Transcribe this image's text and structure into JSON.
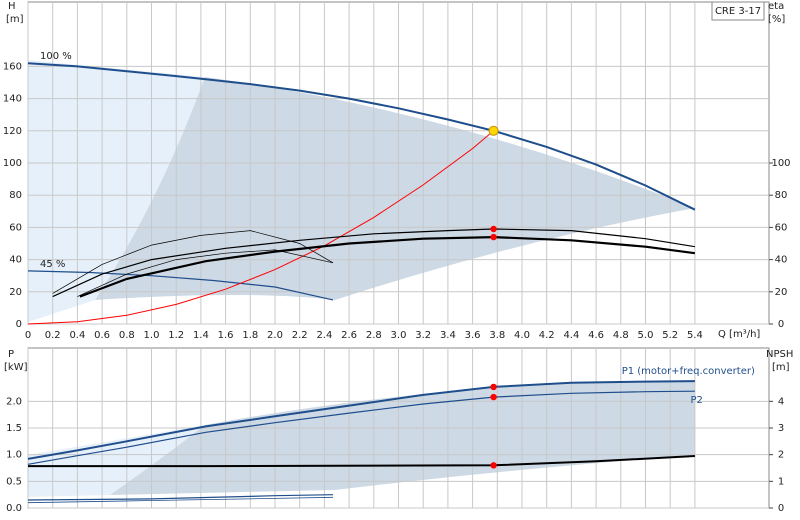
{
  "chart_data": [
    {
      "type": "line",
      "badge": "CRE 3-17",
      "y_label": "H",
      "y_unit": "[m]",
      "y2_label": "eta",
      "y2_unit": "[%]",
      "x_label": "Q [m³/h]",
      "xlim": [
        0,
        6.0
      ],
      "xticks": [
        0,
        0.2,
        0.4,
        0.6,
        0.8,
        {
          "value": 1,
          "label": "1.0"
        },
        1.2,
        1.4,
        1.6,
        1.8,
        {
          "value": 2,
          "label": "2.0"
        },
        2.2,
        2.4,
        2.6,
        2.8,
        {
          "value": 3,
          "label": "3.0"
        },
        3.2,
        3.4,
        3.6,
        3.8,
        {
          "value": 4,
          "label": "4.0"
        },
        4.2,
        4.4,
        4.6,
        4.8,
        {
          "value": 5,
          "label": "5.0"
        },
        5.2,
        5.4
      ],
      "ylim": [
        0,
        200
      ],
      "yticks": [
        0,
        20,
        40,
        60,
        80,
        100,
        120,
        140,
        160
      ],
      "y2lim": [
        0,
        200
      ],
      "y2ticks": [
        0,
        20,
        40,
        60,
        80,
        100
      ],
      "series": [
        {
          "name": "100 %",
          "color": "#1f4e8c",
          "width": 2,
          "x": [
            0,
            0.4,
            0.8,
            1.2,
            1.44,
            1.8,
            2.2,
            2.6,
            3.0,
            3.4,
            3.77,
            4.2,
            4.6,
            5.0,
            5.4
          ],
          "values": [
            162,
            160,
            157,
            154,
            152,
            149,
            145,
            140,
            134,
            127,
            120,
            110,
            99,
            86,
            71
          ]
        },
        {
          "name": "45 %",
          "color": "#1f4e8c",
          "width": 1.2,
          "x": [
            0,
            0.5,
            1.0,
            1.5,
            2.0,
            2.47
          ],
          "values": [
            33,
            32,
            30,
            27,
            23,
            15
          ]
        },
        {
          "color": "#ff0000",
          "width": 1,
          "x": [
            0,
            0.4,
            0.8,
            1.2,
            1.6,
            2.0,
            2.4,
            2.8,
            3.2,
            3.6,
            3.77
          ],
          "values": [
            0,
            1.4,
            5.4,
            12.2,
            21.6,
            33.8,
            48.6,
            66.2,
            86.4,
            109,
            120
          ]
        },
        {
          "color": "#000000",
          "width": 2.2,
          "axis": "y2",
          "x": [
            0.42,
            0.8,
            1.44,
            2.0,
            2.6,
            3.2,
            3.77,
            4.4,
            5.0,
            5.4
          ],
          "values": [
            17,
            28,
            39,
            45,
            50,
            53,
            54,
            52,
            48,
            44
          ]
        },
        {
          "color": "#000000",
          "width": 1.2,
          "axis": "y2",
          "x": [
            0.2,
            0.6,
            1.0,
            1.6,
            2.2,
            2.8,
            3.4,
            3.77,
            4.4,
            5.0,
            5.4
          ],
          "values": [
            17,
            31,
            40,
            47,
            52,
            56,
            58,
            59,
            58,
            53,
            48
          ]
        },
        {
          "color": "#000000",
          "width": 0.7,
          "axis": "y2",
          "x": [
            0.2,
            0.6,
            1.0,
            1.4,
            1.8,
            2.2,
            2.47
          ],
          "values": [
            19,
            37,
            49,
            55,
            58,
            50,
            38
          ]
        },
        {
          "color": "#000000",
          "width": 0.7,
          "axis": "y2",
          "x": [
            0.4,
            0.8,
            1.2,
            1.6,
            2.0,
            2.47
          ],
          "values": [
            17,
            31,
            40,
            44,
            46,
            38
          ]
        }
      ],
      "points": [
        {
          "x": 3.77,
          "y": 120,
          "color": "#ffd700"
        },
        {
          "x": 3.77,
          "y": 59,
          "axis": "y2",
          "color": "#ff0000"
        },
        {
          "x": 3.77,
          "y": 54,
          "axis": "y2",
          "color": "#ff0000"
        }
      ]
    },
    {
      "type": "line",
      "y_label": "P",
      "y_unit": "[kW]",
      "y2_label": "NPSH",
      "y2_unit": "[m]",
      "xlim": [
        0,
        6.0
      ],
      "ylim": [
        0,
        3
      ],
      "yticks": [
        {
          "value": 0,
          "label": "0.0"
        },
        0.5,
        {
          "value": 1,
          "label": "1.0"
        },
        1.5,
        {
          "value": 2,
          "label": "2.0"
        }
      ],
      "y2lim": [
        0,
        6
      ],
      "y2ticks": [
        0,
        1,
        2,
        3,
        4
      ],
      "series": [
        {
          "name": "P1 (motor+freq.converter)",
          "color": "#1f4e8c",
          "width": 2,
          "x": [
            0,
            0.4,
            0.8,
            1.44,
            2.0,
            2.6,
            3.2,
            3.77,
            4.4,
            5.0,
            5.4
          ],
          "values": [
            0.92,
            1.08,
            1.25,
            1.53,
            1.72,
            1.92,
            2.12,
            2.27,
            2.35,
            2.37,
            2.38
          ]
        },
        {
          "name": "P2",
          "color": "#1f4e8c",
          "width": 1.2,
          "x": [
            0,
            0.4,
            0.8,
            1.44,
            2.0,
            2.6,
            3.2,
            3.77,
            4.4,
            5.0,
            5.4
          ],
          "values": [
            0.82,
            0.98,
            1.14,
            1.42,
            1.6,
            1.78,
            1.95,
            2.08,
            2.15,
            2.18,
            2.19
          ]
        },
        {
          "color": "#000000",
          "width": 2,
          "axis": "y2",
          "x": [
            0,
            1.44,
            3.77,
            4.6,
            5.4
          ],
          "values": [
            1.57,
            1.57,
            1.6,
            1.75,
            1.95
          ]
        },
        {
          "color": "#1f4e8c",
          "width": 1.2,
          "x": [
            0,
            1.0,
            2.0,
            2.47
          ],
          "values": [
            0.15,
            0.17,
            0.23,
            0.25
          ]
        },
        {
          "color": "#1f4e8c",
          "width": 0.8,
          "x": [
            0,
            1.0,
            2.0,
            2.47
          ],
          "values": [
            0.1,
            0.14,
            0.18,
            0.2
          ]
        }
      ],
      "points": [
        {
          "x": 3.77,
          "y": 2.27,
          "color": "#ff0000"
        },
        {
          "x": 3.77,
          "y": 2.08,
          "color": "#ff0000"
        },
        {
          "x": 3.77,
          "y": 1.6,
          "axis": "y2",
          "color": "#ff0000"
        }
      ]
    }
  ]
}
